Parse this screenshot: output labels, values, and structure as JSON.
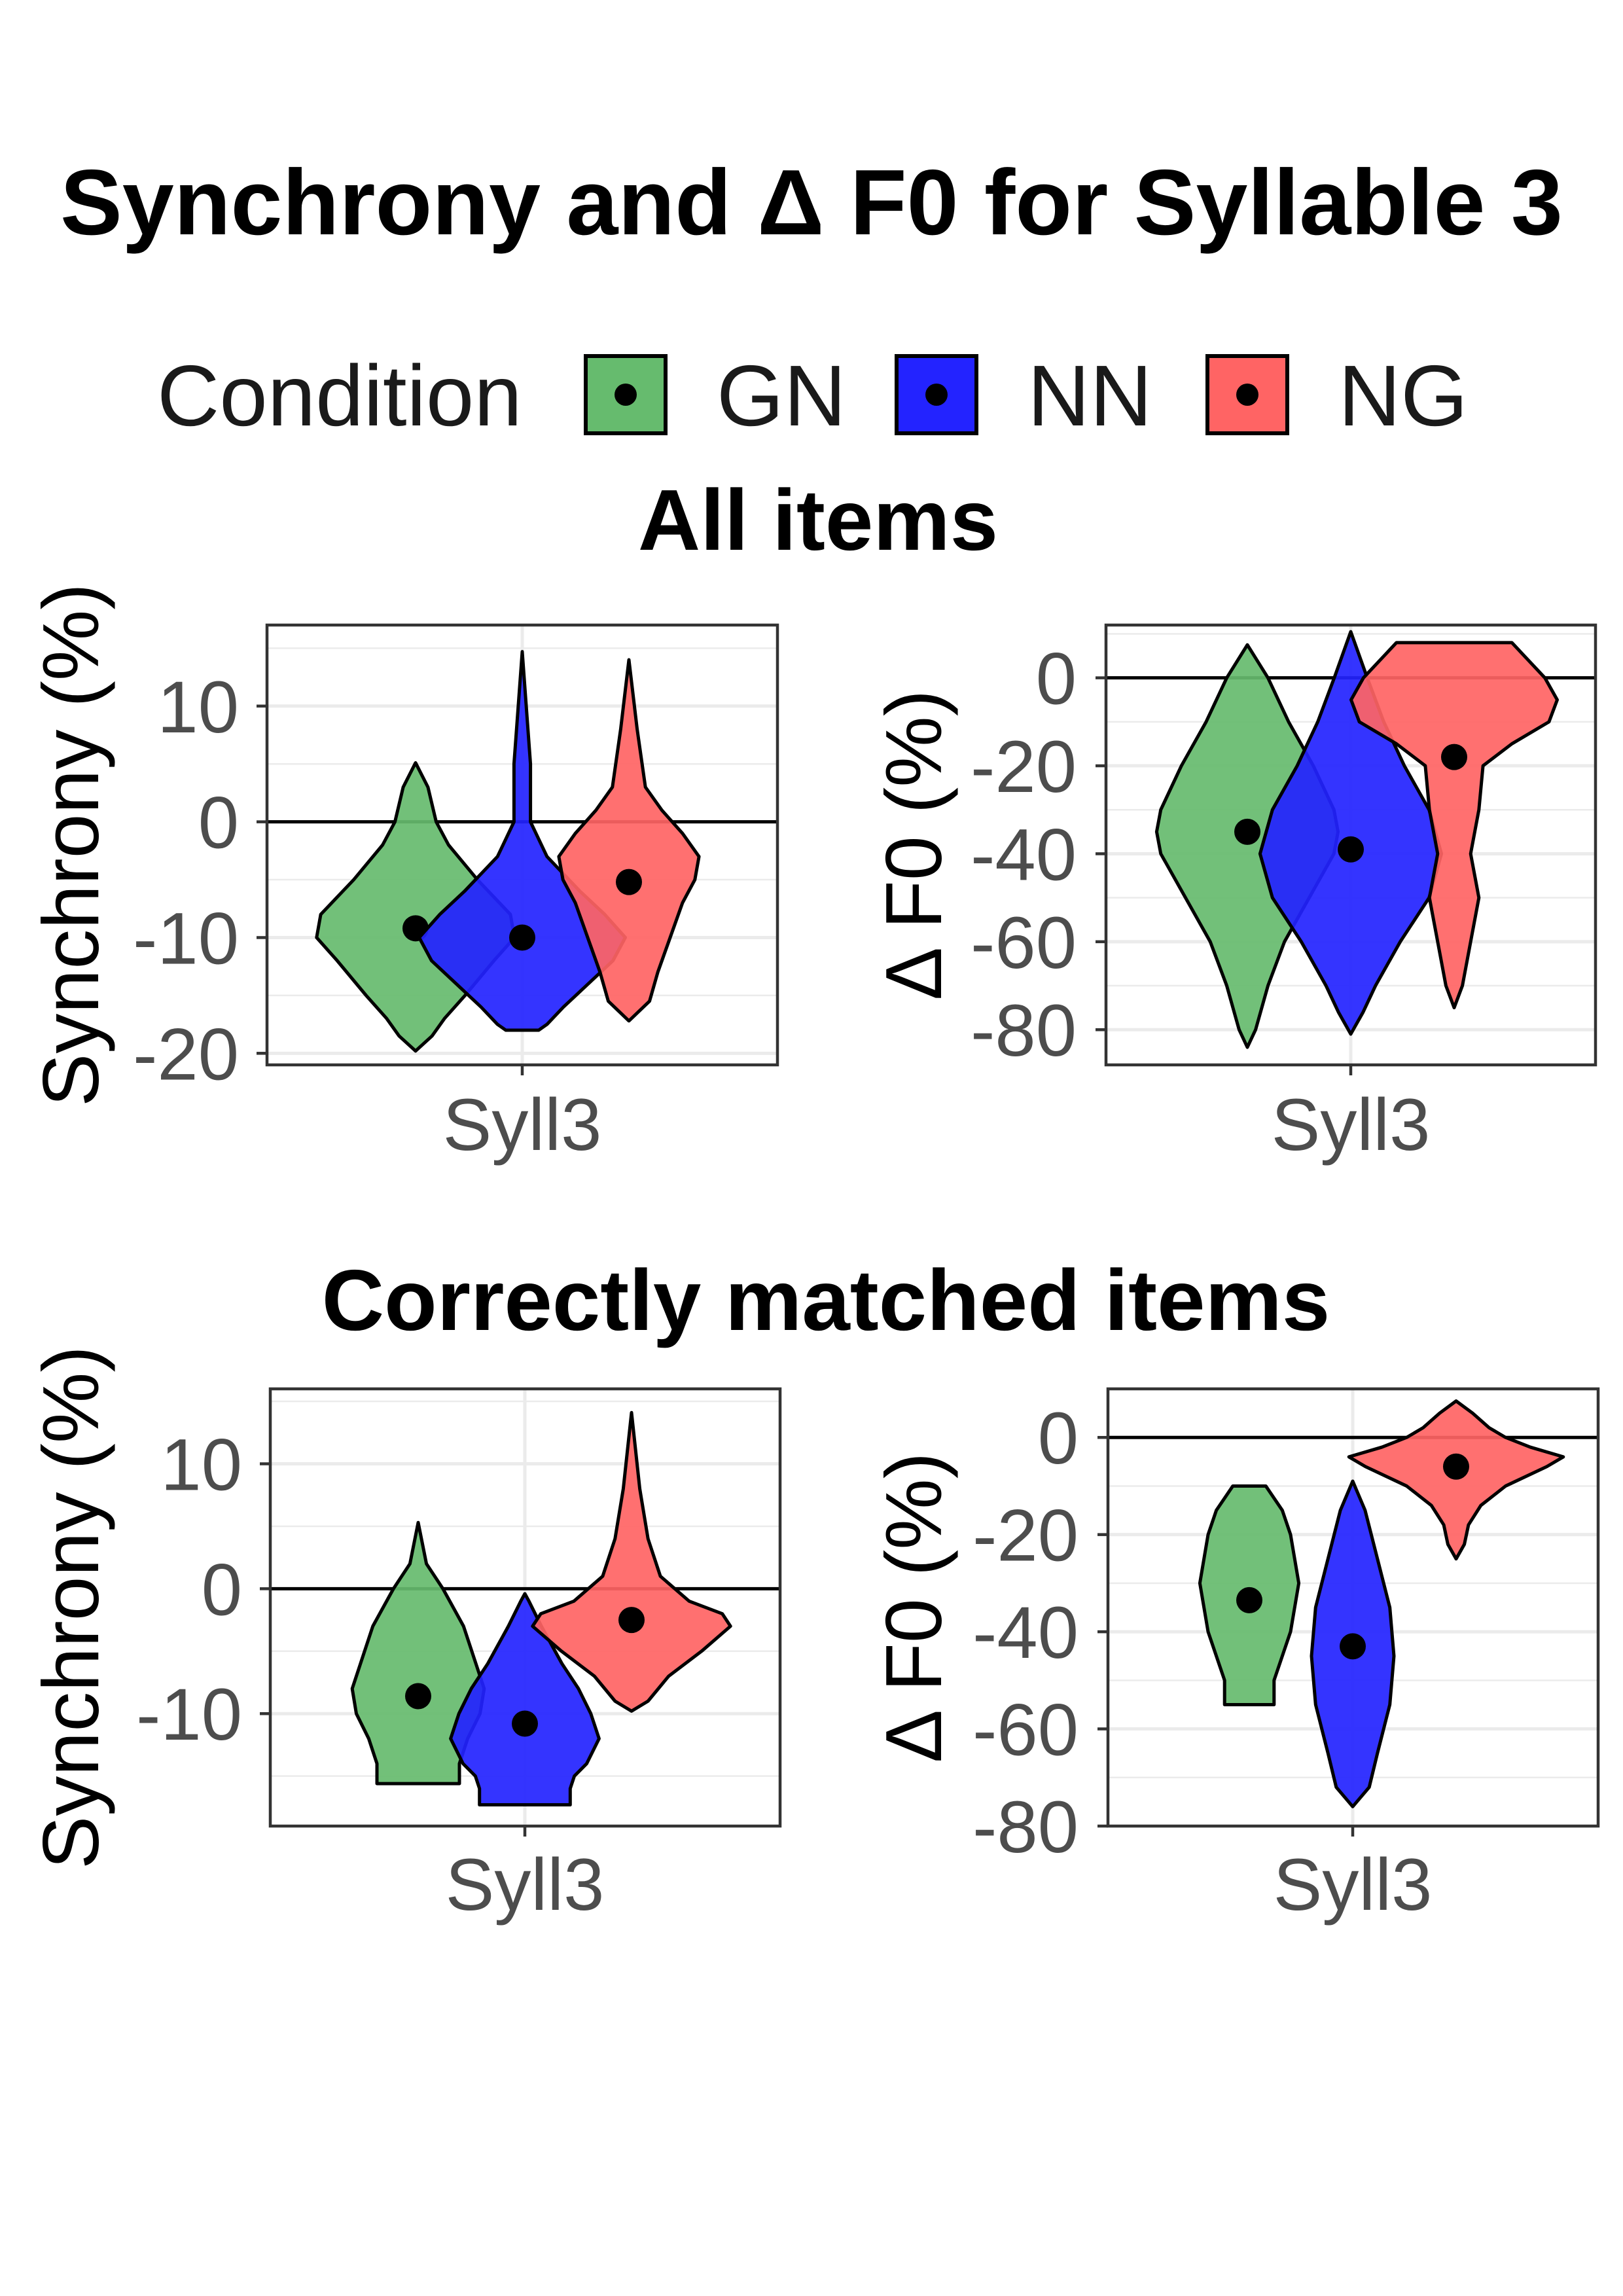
{
  "title": "Synchrony and Δ F0 for Syllable 3",
  "legend": {
    "title": "Condition",
    "items": [
      {
        "label": "GN",
        "color": "#66bb6e"
      },
      {
        "label": "NN",
        "color": "#2323ff"
      },
      {
        "label": "NG",
        "color": "#ff6464"
      }
    ]
  },
  "sections": [
    {
      "title": "All items"
    },
    {
      "title": "Correctly matched items"
    }
  ],
  "chart_data": [
    {
      "type": "violin",
      "section": "All items",
      "xlabel": "",
      "ylabel": "Synchrony (%)",
      "category": "Syll3",
      "ylim": [
        -21,
        17
      ],
      "yticks": [
        -20,
        -10,
        0,
        10
      ],
      "hline": 0,
      "grid": true,
      "series": [
        {
          "name": "GN",
          "color": "#66bb6e",
          "mean": -9.2,
          "shape": [
            [
              5.1,
              0
            ],
            [
              3,
              3
            ],
            [
              0,
              5
            ],
            [
              -2,
              8
            ],
            [
              -5,
              15
            ],
            [
              -8,
              23
            ],
            [
              -10,
              24
            ],
            [
              -12,
              19
            ],
            [
              -15,
              12
            ],
            [
              -17,
              7
            ],
            [
              -18.5,
              4
            ],
            [
              -19.8,
              0
            ]
          ]
        },
        {
          "name": "NN",
          "color": "#2323ff",
          "mean": -10,
          "shape": [
            [
              14.7,
              0
            ],
            [
              5,
              2
            ],
            [
              0,
              2
            ],
            [
              -3,
              6
            ],
            [
              -6,
              14
            ],
            [
              -8,
              20
            ],
            [
              -10,
              25
            ],
            [
              -12,
              22
            ],
            [
              -14,
              16
            ],
            [
              -16,
              10
            ],
            [
              -17.5,
              6
            ],
            [
              -18,
              4
            ]
          ]
        },
        {
          "name": "NG",
          "color": "#ff6464",
          "mean": -5.2,
          "shape": [
            [
              14,
              0
            ],
            [
              8,
              2
            ],
            [
              3,
              4
            ],
            [
              1,
              8
            ],
            [
              -1,
              13
            ],
            [
              -3,
              17
            ],
            [
              -5,
              16
            ],
            [
              -7,
              13
            ],
            [
              -10,
              10
            ],
            [
              -13,
              7
            ],
            [
              -15.5,
              5
            ],
            [
              -17.2,
              0
            ]
          ]
        }
      ]
    },
    {
      "type": "violin",
      "section": "All items",
      "xlabel": "",
      "ylabel": "Δ F0 (%)",
      "category": "Syll3",
      "ylim": [
        -88,
        12
      ],
      "yticks": [
        -80,
        -60,
        -40,
        -20,
        0
      ],
      "hline": 0,
      "grid": true,
      "series": [
        {
          "name": "GN",
          "color": "#66bb6e",
          "mean": -35,
          "shape": [
            [
              7.5,
              0
            ],
            [
              0,
              5
            ],
            [
              -10,
              10
            ],
            [
              -20,
              16
            ],
            [
              -30,
              21
            ],
            [
              -35,
              22
            ],
            [
              -40,
              21
            ],
            [
              -50,
              15
            ],
            [
              -60,
              9
            ],
            [
              -70,
              5
            ],
            [
              -80,
              2
            ],
            [
              -84,
              0
            ]
          ]
        },
        {
          "name": "NN",
          "color": "#2323ff",
          "mean": -39,
          "shape": [
            [
              10.5,
              0
            ],
            [
              0,
              4
            ],
            [
              -10,
              8
            ],
            [
              -20,
              13
            ],
            [
              -30,
              19
            ],
            [
              -40,
              22
            ],
            [
              -50,
              19
            ],
            [
              -60,
              12
            ],
            [
              -70,
              6
            ],
            [
              -76,
              3
            ],
            [
              -81,
              0
            ]
          ]
        },
        {
          "name": "NG",
          "color": "#ff6464",
          "mean": -18,
          "shape": [
            [
              8,
              14
            ],
            [
              5,
              17
            ],
            [
              0,
              22
            ],
            [
              -5,
              25
            ],
            [
              -10,
              23
            ],
            [
              -15,
              14
            ],
            [
              -20,
              7
            ],
            [
              -30,
              6
            ],
            [
              -40,
              4
            ],
            [
              -50,
              6
            ],
            [
              -60,
              4
            ],
            [
              -70,
              2
            ],
            [
              -75,
              0
            ]
          ]
        }
      ]
    },
    {
      "type": "violin",
      "section": "Correctly matched items",
      "xlabel": "",
      "ylabel": "Synchrony (%)",
      "category": "Syll3",
      "ylim": [
        -19,
        16
      ],
      "yticks": [
        -10,
        0,
        10
      ],
      "hline": 0,
      "grid": true,
      "series": [
        {
          "name": "GN",
          "color": "#66bb6e",
          "mean": -8.6,
          "shape": [
            [
              5.3,
              0
            ],
            [
              2,
              2
            ],
            [
              0,
              6
            ],
            [
              -3,
              11
            ],
            [
              -6,
              14
            ],
            [
              -8,
              16
            ],
            [
              -10,
              15
            ],
            [
              -12,
              12
            ],
            [
              -14,
              10
            ],
            [
              -15.6,
              10
            ]
          ]
        },
        {
          "name": "NN",
          "color": "#2323ff",
          "mean": -10.8,
          "shape": [
            [
              -0.4,
              0
            ],
            [
              -1,
              1
            ],
            [
              -3,
              4
            ],
            [
              -6,
              9
            ],
            [
              -8,
              13
            ],
            [
              -10,
              16
            ],
            [
              -12,
              18
            ],
            [
              -14,
              15
            ],
            [
              -15,
              12
            ],
            [
              -16,
              11
            ],
            [
              -17.3,
              11
            ]
          ]
        },
        {
          "name": "NG",
          "color": "#ff6464",
          "mean": -2.5,
          "shape": [
            [
              14.1,
              0
            ],
            [
              8,
              2
            ],
            [
              4,
              4
            ],
            [
              1,
              7
            ],
            [
              -1,
              14
            ],
            [
              -2,
              22
            ],
            [
              -3,
              24
            ],
            [
              -5,
              17
            ],
            [
              -7,
              9
            ],
            [
              -9,
              4
            ],
            [
              -9.8,
              0
            ]
          ]
        }
      ]
    },
    {
      "type": "violin",
      "section": "Correctly matched items",
      "xlabel": "",
      "ylabel": "Δ F0 (%)",
      "category": "Syll3",
      "ylim": [
        -80,
        10
      ],
      "yticks": [
        -80,
        -60,
        -40,
        -20,
        0
      ],
      "hline": 0,
      "grid": true,
      "series": [
        {
          "name": "GN",
          "color": "#66bb6e",
          "mean": -33.5,
          "shape": [
            [
              -10,
              4
            ],
            [
              -15,
              8
            ],
            [
              -20,
              10
            ],
            [
              -30,
              12
            ],
            [
              -40,
              10
            ],
            [
              -50,
              6
            ],
            [
              -55,
              6
            ]
          ]
        },
        {
          "name": "NN",
          "color": "#2323ff",
          "mean": -43,
          "shape": [
            [
              -9,
              0
            ],
            [
              -15,
              3
            ],
            [
              -25,
              6
            ],
            [
              -35,
              9
            ],
            [
              -45,
              10
            ],
            [
              -55,
              9
            ],
            [
              -65,
              6
            ],
            [
              -72,
              4
            ],
            [
              -76,
              0
            ]
          ]
        },
        {
          "name": "NG",
          "color": "#ff6464",
          "mean": -6,
          "shape": [
            [
              7.5,
              0
            ],
            [
              5,
              4
            ],
            [
              2,
              8
            ],
            [
              0,
              12
            ],
            [
              -2,
              18
            ],
            [
              -4,
              26
            ],
            [
              -6,
              22
            ],
            [
              -10,
              12
            ],
            [
              -14,
              6
            ],
            [
              -18,
              3
            ],
            [
              -22,
              2
            ],
            [
              -25,
              0
            ]
          ]
        }
      ]
    }
  ]
}
